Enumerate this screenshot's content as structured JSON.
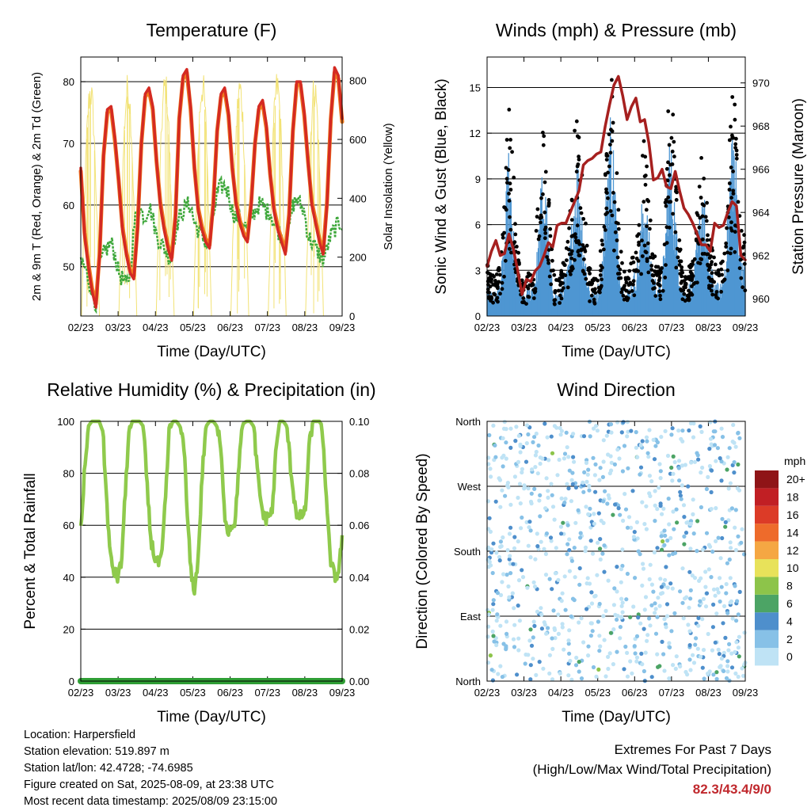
{
  "colors": {
    "temp2m": "#d42a22",
    "temp9m": "#f07a1e",
    "dew": "#3fa83c",
    "solar": "#f2e275",
    "wind": "#4e96d2",
    "gust": "#000000",
    "pressure": "#a6201f",
    "rh": "#8fca4c",
    "precip": "#2f9e35",
    "extremes": "#c0282d"
  },
  "x_ticks": [
    "02/23",
    "03/23",
    "04/23",
    "05/23",
    "06/23",
    "07/23",
    "08/23",
    "09/23"
  ],
  "chart_data": [
    {
      "type": "line",
      "title": "Temperature (F)",
      "xlabel": "Time (Day/UTC)",
      "ylabel": "2m & 9m T (Red, Orange) & 2m Td (Green)",
      "y2label": "Solar Insolation (Yellow)",
      "ylim": [
        42,
        84
      ],
      "yticks": [
        "50",
        "60",
        "70",
        "80"
      ],
      "y2lim": [
        0,
        880
      ],
      "y2ticks": [
        "0",
        "200",
        "400",
        "600",
        "800"
      ],
      "grid": true,
      "series": [
        {
          "key": "t2m",
          "values": [
            66,
            55,
            50,
            46,
            43.4,
            52,
            68,
            75.5,
            76,
            71,
            64,
            56,
            52,
            49,
            48,
            56,
            70,
            78,
            79,
            76,
            67,
            60,
            56,
            53,
            51,
            58,
            74,
            81,
            82,
            76,
            66,
            59,
            56,
            54,
            53,
            60,
            72,
            78,
            79,
            75,
            66,
            60,
            57,
            55,
            54,
            60,
            70,
            76,
            77,
            73,
            65,
            59,
            56,
            54,
            52,
            58,
            72,
            80,
            80,
            75,
            67,
            60,
            57,
            54,
            52,
            60,
            74,
            82.3,
            81,
            74
          ]
        },
        {
          "key": "t9m",
          "values": [
            65.5,
            55.5,
            50.5,
            46.5,
            44,
            52.5,
            68,
            75,
            75.5,
            70.5,
            64,
            56.5,
            52.5,
            49.5,
            48.5,
            56.5,
            70,
            77.5,
            78.5,
            75.5,
            67,
            60.5,
            56.5,
            53.5,
            51.5,
            58.5,
            74,
            80.5,
            81.5,
            75.5,
            66,
            59.5,
            56.5,
            54.5,
            53.5,
            60.5,
            72,
            77.5,
            78.5,
            74.5,
            66,
            60.5,
            57.5,
            55.5,
            54.5,
            60.5,
            70,
            75.5,
            76.5,
            72.5,
            65,
            59.5,
            56.5,
            54.5,
            52.5,
            58.5,
            72,
            79.5,
            79.5,
            74.5,
            67,
            60.5,
            57.5,
            54.5,
            52.5,
            60.5,
            74,
            81.5,
            80.5,
            73.5
          ]
        },
        {
          "key": "td",
          "values": [
            51,
            50,
            48,
            46,
            44,
            50,
            52,
            53,
            54,
            52,
            49,
            48,
            47,
            49,
            56,
            60,
            59,
            58,
            60,
            58,
            55,
            54,
            53,
            52,
            51,
            56,
            58,
            59,
            60,
            60,
            57,
            56,
            55,
            54,
            53,
            58,
            62,
            63,
            63,
            62,
            59,
            58,
            58,
            57,
            56,
            58,
            59,
            60,
            60,
            59,
            59,
            57,
            56,
            55,
            54,
            56,
            60,
            61,
            60,
            59,
            55,
            54,
            53,
            52,
            51,
            53,
            55,
            56,
            57,
            57
          ]
        },
        {
          "key": "solar",
          "values": [
            620,
            0,
            0,
            0,
            0,
            0,
            820,
            400,
            0,
            0,
            0,
            0,
            780,
            0,
            0,
            0,
            0,
            0,
            830,
            0,
            0,
            0,
            0,
            0,
            840,
            0,
            0,
            0,
            0,
            0,
            830,
            0,
            0,
            0,
            0,
            0,
            840,
            0,
            0,
            0,
            0,
            0,
            830,
            0,
            0,
            0,
            0,
            0,
            820,
            0,
            0,
            0,
            0,
            0,
            840,
            0,
            0,
            0,
            0,
            0,
            830,
            0,
            0,
            0,
            0,
            0,
            810,
            0,
            0,
            0
          ]
        }
      ]
    },
    {
      "type": "line",
      "title": "Winds (mph) & Pressure (mb)",
      "xlabel": "Time (Day/UTC)",
      "ylabel": "Sonic Wind & Gust (Blue, Black)",
      "y2label": "Station Pressure (Maroon)",
      "ylim": [
        0,
        17
      ],
      "yticks": [
        "0",
        "3",
        "6",
        "9",
        "12",
        "15"
      ],
      "y2lim": [
        959.2,
        971.2
      ],
      "y2ticks": [
        "960",
        "962",
        "964",
        "966",
        "968",
        "970"
      ],
      "grid": true,
      "series": [
        {
          "key": "wind",
          "values": [
            1.5,
            1.2,
            1,
            1.5,
            3,
            7,
            4,
            2,
            1,
            1,
            1.2,
            1.5,
            3,
            6.5,
            5,
            2,
            1,
            1,
            1.5,
            2,
            4,
            7,
            6,
            3,
            1.5,
            1,
            1.2,
            2,
            5,
            9,
            7,
            3,
            1.5,
            1,
            1.5,
            2,
            3,
            6,
            4,
            2,
            1.5,
            1.5,
            3,
            8,
            6,
            3,
            1.5,
            1,
            1.5,
            2,
            4,
            6,
            3,
            2,
            1.5,
            1.2,
            2,
            5,
            9,
            6,
            3,
            2
          ]
        },
        {
          "key": "gust",
          "values": [
            3,
            2.5,
            2,
            3,
            6,
            12,
            9,
            5,
            2,
            2,
            2.5,
            3,
            6,
            11,
            10,
            5,
            2,
            2,
            3,
            4,
            7,
            12,
            10,
            6,
            3,
            2,
            2.5,
            4,
            9,
            14,
            12,
            6,
            3,
            2,
            3,
            4,
            6,
            10,
            8,
            4,
            3,
            3,
            6,
            13,
            11,
            6,
            3,
            2,
            3,
            4,
            7,
            10,
            6,
            4,
            3,
            2.5,
            4,
            9,
            13,
            11,
            6,
            4
          ]
        },
        {
          "key": "pressure",
          "values": [
            961.5,
            962.2,
            962.7,
            962,
            962.1,
            963,
            962.3,
            961.3,
            960.2,
            960.9,
            960.8,
            961.3,
            961.5,
            962,
            962.6,
            962.4,
            963.4,
            963.5,
            963.5,
            964,
            964.5,
            965,
            966.2,
            966.4,
            966.5,
            966.7,
            966.8,
            968,
            969,
            969.9,
            970.3,
            969.4,
            968.3,
            968.9,
            969.3,
            968.2,
            968.3,
            967.2,
            965.5,
            965.6,
            966,
            965.2,
            965.1,
            965.9,
            965,
            964.2,
            963.9,
            963.5,
            963,
            962.5,
            962.5,
            962.2,
            963.5,
            963.3,
            963.4,
            964,
            964.5,
            964.3,
            962,
            961.8
          ]
        }
      ]
    },
    {
      "type": "line",
      "title": "Relative Humidity (%) & Precipitation (in)",
      "xlabel": "Time (Day/UTC)",
      "ylabel": "Percent & Total Rainfall",
      "ylim": [
        0,
        100
      ],
      "yticks": [
        "0",
        "20",
        "40",
        "60",
        "80",
        "100"
      ],
      "y2lim": [
        0,
        0.1
      ],
      "y2ticks": [
        "0.00",
        "0.02",
        "0.04",
        "0.06",
        "0.08",
        "0.10"
      ],
      "grid": true,
      "series": [
        {
          "key": "rh",
          "values": [
            58,
            80,
            98,
            100,
            100,
            100,
            96,
            70,
            48,
            42,
            40,
            45,
            70,
            95,
            100,
            100,
            100,
            98,
            75,
            55,
            48,
            45,
            47,
            70,
            96,
            100,
            100,
            98,
            92,
            62,
            40,
            35,
            50,
            80,
            98,
            100,
            100,
            98,
            90,
            65,
            58,
            60,
            62,
            85,
            99,
            100,
            100,
            98,
            80,
            68,
            62,
            64,
            65,
            88,
            100,
            100,
            98,
            82,
            70,
            62,
            64,
            65,
            90,
            100,
            100,
            100,
            90,
            62,
            45,
            40,
            42,
            55
          ]
        },
        {
          "key": "precip",
          "values": [
            0,
            0,
            0,
            0,
            0,
            0,
            0,
            0,
            0,
            0
          ]
        }
      ]
    },
    {
      "type": "scatter",
      "title": "Wind Direction",
      "xlabel": "Time (Day/UTC)",
      "ylabel": "Direction (Colored By Speed)",
      "yticks": [
        "North",
        "East",
        "South",
        "West",
        "North"
      ],
      "ylim": [
        0,
        360
      ],
      "colorbar": {
        "unit": "mph",
        "labels": [
          "0",
          "2",
          "4",
          "6",
          "8",
          "10",
          "12",
          "14",
          "16",
          "18",
          "20+"
        ],
        "colors": [
          "#bfe3f5",
          "#87c1e7",
          "#4e8fcc",
          "#4ca465",
          "#8dc44a",
          "#e8e25a",
          "#f5a743",
          "#ee6b2b",
          "#dc3b27",
          "#c11f24",
          "#8f1417"
        ]
      }
    }
  ],
  "info": {
    "location": "Location: Harpersfield",
    "elevation": "Station elevation: 519.897 m",
    "latlon": "Station lat/lon: 42.4728; -74.6985",
    "created": "Figure created on Sat, 2025-08-09, at 23:38 UTC",
    "recent": "Most recent data timestamp: 2025/08/09 23:15:00"
  },
  "extremes": {
    "title": "Extremes For Past 7 Days",
    "subtitle": "(High/Low/Max Wind/Total Precipitation)",
    "values": "82.3/43.4/9/0"
  }
}
